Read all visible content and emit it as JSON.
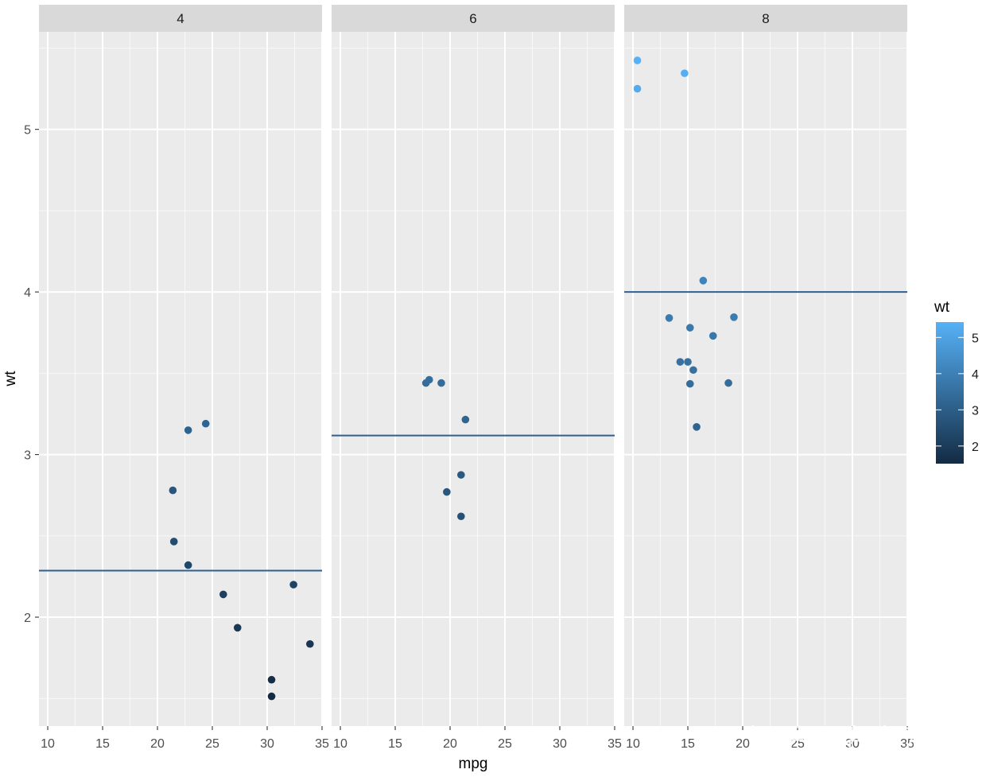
{
  "chart_data": {
    "type": "scatter",
    "facet_variable": "cyl",
    "facets": [
      {
        "label": "4",
        "mean_wt": 2.286,
        "points": [
          {
            "mpg": 22.8,
            "wt": 2.32
          },
          {
            "mpg": 24.4,
            "wt": 3.19
          },
          {
            "mpg": 22.8,
            "wt": 3.15
          },
          {
            "mpg": 32.4,
            "wt": 2.2
          },
          {
            "mpg": 30.4,
            "wt": 1.615
          },
          {
            "mpg": 33.9,
            "wt": 1.835
          },
          {
            "mpg": 21.5,
            "wt": 2.465
          },
          {
            "mpg": 27.3,
            "wt": 1.935
          },
          {
            "mpg": 26.0,
            "wt": 2.14
          },
          {
            "mpg": 30.4,
            "wt": 1.513
          },
          {
            "mpg": 21.4,
            "wt": 2.78
          }
        ]
      },
      {
        "label": "6",
        "mean_wt": 3.117,
        "points": [
          {
            "mpg": 21.0,
            "wt": 2.62
          },
          {
            "mpg": 21.0,
            "wt": 2.875
          },
          {
            "mpg": 21.4,
            "wt": 3.215
          },
          {
            "mpg": 18.1,
            "wt": 3.46
          },
          {
            "mpg": 19.2,
            "wt": 3.44
          },
          {
            "mpg": 17.8,
            "wt": 3.44
          },
          {
            "mpg": 19.7,
            "wt": 2.77
          }
        ]
      },
      {
        "label": "8",
        "mean_wt": 4.0,
        "points": [
          {
            "mpg": 18.7,
            "wt": 3.44
          },
          {
            "mpg": 14.3,
            "wt": 3.57
          },
          {
            "mpg": 16.4,
            "wt": 4.07
          },
          {
            "mpg": 17.3,
            "wt": 3.73
          },
          {
            "mpg": 15.2,
            "wt": 3.78
          },
          {
            "mpg": 10.4,
            "wt": 5.25
          },
          {
            "mpg": 10.4,
            "wt": 5.424
          },
          {
            "mpg": 14.7,
            "wt": 5.345
          },
          {
            "mpg": 15.5,
            "wt": 3.52
          },
          {
            "mpg": 15.2,
            "wt": 3.435
          },
          {
            "mpg": 13.3,
            "wt": 3.84
          },
          {
            "mpg": 19.2,
            "wt": 3.845
          },
          {
            "mpg": 15.8,
            "wt": 3.17
          },
          {
            "mpg": 15.0,
            "wt": 3.57
          }
        ]
      }
    ],
    "xlabel": "mpg",
    "ylabel": "wt",
    "xlim": [
      9.2,
      35.0
    ],
    "ylim": [
      1.33,
      5.6
    ],
    "xticks": [
      10,
      15,
      20,
      25,
      30,
      35
    ],
    "yticks": [
      2,
      3,
      4,
      5
    ],
    "grid": true,
    "legend": {
      "title": "wt",
      "placement": "right",
      "type": "colorbar",
      "range": [
        1.513,
        5.424
      ],
      "ticks": [
        2,
        3,
        4,
        5
      ],
      "low_color": "#132B43",
      "high_color": "#56B1F7"
    },
    "hline_color": "#2f5f8f",
    "panel_background": "#EBEBEB",
    "strip_background": "#D9D9D9",
    "grid_color": "#FFFFFF"
  },
  "watermark": "知乎 @名本无名"
}
